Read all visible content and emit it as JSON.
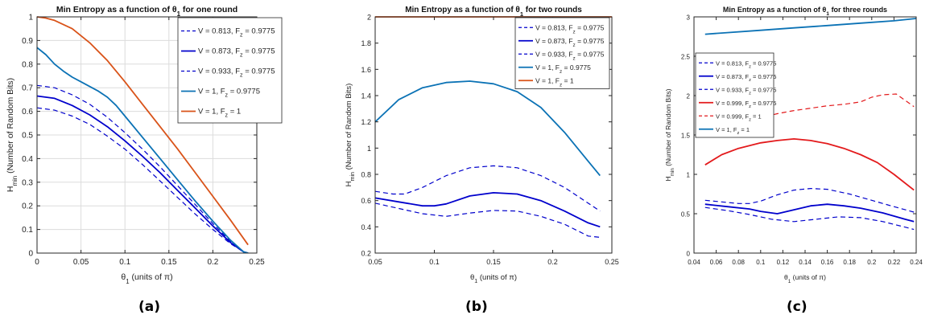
{
  "figure": {
    "panel_labels": [
      "(a)",
      "(b)",
      "(c)"
    ]
  },
  "colors": {
    "dark_blue": "#0000cc",
    "teal": "#0b72b5",
    "orange": "#d95319",
    "red": "#e31a1c"
  },
  "chart_data": [
    {
      "type": "line",
      "title": "Min Entropy as a function of θ1 for one round",
      "xlabel": "θ1 (units of π)",
      "ylabel": "Hmin (Number of Random Bits)",
      "xlim": [
        0,
        0.25
      ],
      "ylim": [
        0,
        1
      ],
      "xticks": [
        0,
        0.05,
        0.1,
        0.15,
        0.2,
        0.25
      ],
      "xtick_labels": [
        "0",
        "0.05",
        "0.1",
        "0.15",
        "0.2",
        "0.25"
      ],
      "yticks": [
        0,
        0.1,
        0.2,
        0.3,
        0.4,
        0.5,
        0.6,
        0.7,
        0.8,
        0.9,
        1
      ],
      "ytick_labels": [
        "0",
        "0.1",
        "0.2",
        "0.3",
        "0.4",
        "0.5",
        "0.6",
        "0.7",
        "0.8",
        "0.9",
        "1"
      ],
      "grid": true,
      "legend_position": "top-right",
      "series": [
        {
          "name": "V = 0.813, F_z = 0.9775",
          "style": "dashed",
          "color": "#0000cc",
          "x": [
            0,
            0.02,
            0.04,
            0.06,
            0.08,
            0.1,
            0.12,
            0.14,
            0.16,
            0.18,
            0.2,
            0.22,
            0.235,
            0.24
          ],
          "y": [
            0.615,
            0.605,
            0.58,
            0.545,
            0.495,
            0.44,
            0.375,
            0.305,
            0.235,
            0.165,
            0.1,
            0.04,
            0.005,
            0
          ]
        },
        {
          "name": "V = 0.873, F_z = 0.9775",
          "style": "solid",
          "color": "#0000cc",
          "x": [
            0,
            0.02,
            0.04,
            0.06,
            0.08,
            0.1,
            0.12,
            0.14,
            0.16,
            0.18,
            0.2,
            0.22,
            0.235,
            0.24
          ],
          "y": [
            0.665,
            0.655,
            0.625,
            0.585,
            0.535,
            0.475,
            0.41,
            0.34,
            0.265,
            0.19,
            0.115,
            0.045,
            0.005,
            0
          ]
        },
        {
          "name": "V = 0.933, F_z = 0.9775",
          "style": "dashed",
          "color": "#0000cc",
          "x": [
            0,
            0.02,
            0.04,
            0.06,
            0.08,
            0.1,
            0.12,
            0.14,
            0.16,
            0.18,
            0.2,
            0.22,
            0.235,
            0.24
          ],
          "y": [
            0.71,
            0.7,
            0.67,
            0.63,
            0.575,
            0.51,
            0.44,
            0.365,
            0.285,
            0.205,
            0.125,
            0.05,
            0.005,
            0
          ]
        },
        {
          "name": "V = 1, F_z = 0.9775",
          "style": "solid",
          "color": "#0b72b5",
          "x": [
            0,
            0.01,
            0.02,
            0.03,
            0.04,
            0.05,
            0.06,
            0.07,
            0.08,
            0.09,
            0.1,
            0.12,
            0.14,
            0.16,
            0.18,
            0.2,
            0.22,
            0.235,
            0.24
          ],
          "y": [
            0.87,
            0.84,
            0.8,
            0.77,
            0.745,
            0.725,
            0.705,
            0.685,
            0.66,
            0.625,
            0.58,
            0.49,
            0.4,
            0.31,
            0.22,
            0.135,
            0.055,
            0.005,
            0
          ]
        },
        {
          "name": "V = 1, F_z = 1",
          "style": "solid",
          "color": "#d95319",
          "x": [
            0,
            0.01,
            0.02,
            0.04,
            0.06,
            0.08,
            0.1,
            0.12,
            0.14,
            0.16,
            0.18,
            0.2,
            0.22,
            0.24
          ],
          "y": [
            1,
            0.995,
            0.985,
            0.95,
            0.89,
            0.815,
            0.725,
            0.63,
            0.535,
            0.44,
            0.34,
            0.24,
            0.14,
            0.035
          ]
        }
      ]
    },
    {
      "type": "line",
      "title": "Min Entropy as a function of θ1 for two rounds",
      "xlabel": "θ1 (units of π)",
      "ylabel": "Hmin (Number of Random Bits)",
      "xlim": [
        0.05,
        0.25
      ],
      "ylim": [
        0.2,
        2
      ],
      "xticks": [
        0.05,
        0.1,
        0.15,
        0.2,
        0.25
      ],
      "xtick_labels": [
        "0.05",
        "0.1",
        "0.15",
        "0.2",
        "0.25"
      ],
      "yticks": [
        0.2,
        0.4,
        0.6,
        0.8,
        1,
        1.2,
        1.4,
        1.6,
        1.8,
        2
      ],
      "ytick_labels": [
        "0.2",
        "0.4",
        "0.6",
        "0.8",
        "1",
        "1.2",
        "1.4",
        "1.6",
        "1.8",
        "2"
      ],
      "grid": false,
      "legend_position": "top-right",
      "series": [
        {
          "name": "V = 0.813, F_z = 0.9775",
          "style": "dashed",
          "color": "#0000cc",
          "x": [
            0.05,
            0.07,
            0.09,
            0.11,
            0.13,
            0.15,
            0.17,
            0.19,
            0.21,
            0.23,
            0.24
          ],
          "y": [
            0.58,
            0.54,
            0.5,
            0.48,
            0.505,
            0.525,
            0.52,
            0.48,
            0.42,
            0.33,
            0.32
          ]
        },
        {
          "name": "V = 0.873, F_z = 0.9775",
          "style": "solid",
          "color": "#0000cc",
          "x": [
            0.05,
            0.07,
            0.09,
            0.1,
            0.11,
            0.13,
            0.15,
            0.17,
            0.19,
            0.21,
            0.23,
            0.24
          ],
          "y": [
            0.62,
            0.59,
            0.56,
            0.56,
            0.575,
            0.635,
            0.66,
            0.65,
            0.6,
            0.52,
            0.43,
            0.4
          ]
        },
        {
          "name": "V = 0.933, F_z = 0.9775",
          "style": "dashed",
          "color": "#0000cc",
          "x": [
            0.05,
            0.065,
            0.075,
            0.09,
            0.11,
            0.13,
            0.15,
            0.17,
            0.19,
            0.21,
            0.23,
            0.24
          ],
          "y": [
            0.67,
            0.65,
            0.65,
            0.7,
            0.79,
            0.85,
            0.865,
            0.85,
            0.79,
            0.7,
            0.58,
            0.52
          ]
        },
        {
          "name": "V = 1, F_z = 0.9775",
          "style": "solid",
          "color": "#0b72b5",
          "x": [
            0.05,
            0.07,
            0.09,
            0.11,
            0.13,
            0.15,
            0.17,
            0.19,
            0.21,
            0.23,
            0.24
          ],
          "y": [
            1.2,
            1.37,
            1.46,
            1.5,
            1.51,
            1.49,
            1.43,
            1.31,
            1.12,
            0.9,
            0.79
          ]
        },
        {
          "name": "V = 1, F_z = 1",
          "style": "solid",
          "color": "#d95319",
          "x": [
            0.05,
            0.25
          ],
          "y": [
            2,
            2
          ]
        }
      ]
    },
    {
      "type": "line",
      "title": "Min Entropy as a function of θ1 for three rounds",
      "xlabel": "θ1 (units of π)",
      "ylabel": "Hmin (Number of Random Bits)",
      "xlim": [
        0.04,
        0.24
      ],
      "ylim": [
        0,
        3
      ],
      "xticks": [
        0.04,
        0.06,
        0.08,
        0.1,
        0.12,
        0.14,
        0.16,
        0.18,
        0.2,
        0.22,
        0.24
      ],
      "xtick_labels": [
        "0.04",
        "0.06",
        "0.08",
        "0.1",
        "0.12",
        "0.14",
        "0.16",
        "0.18",
        "0.2",
        "0.22",
        "0.24"
      ],
      "yticks": [
        0,
        0.5,
        1,
        1.5,
        2,
        2.5,
        3
      ],
      "ytick_labels": [
        "0",
        "0.5",
        "1",
        "1.5",
        "2",
        "2.5",
        "3"
      ],
      "grid": false,
      "legend_position": "top-left",
      "series": [
        {
          "name": "V = 0.813, F_z = 0.9775",
          "style": "dashed",
          "color": "#0000cc",
          "x": [
            0.05,
            0.07,
            0.09,
            0.11,
            0.13,
            0.15,
            0.17,
            0.19,
            0.21,
            0.23,
            0.238
          ],
          "y": [
            0.58,
            0.54,
            0.49,
            0.43,
            0.4,
            0.43,
            0.46,
            0.45,
            0.4,
            0.33,
            0.3
          ]
        },
        {
          "name": "V = 0.873, F_z = 0.9775",
          "style": "solid",
          "color": "#0000cc",
          "x": [
            0.05,
            0.07,
            0.09,
            0.1,
            0.115,
            0.13,
            0.145,
            0.16,
            0.175,
            0.19,
            0.21,
            0.23,
            0.238
          ],
          "y": [
            0.62,
            0.59,
            0.56,
            0.53,
            0.5,
            0.55,
            0.6,
            0.62,
            0.6,
            0.57,
            0.51,
            0.43,
            0.4
          ]
        },
        {
          "name": "V = 0.933, F_z = 0.9775",
          "style": "dashed",
          "color": "#0000cc",
          "x": [
            0.05,
            0.065,
            0.08,
            0.09,
            0.1,
            0.115,
            0.13,
            0.145,
            0.16,
            0.18,
            0.2,
            0.22,
            0.238
          ],
          "y": [
            0.67,
            0.65,
            0.63,
            0.63,
            0.66,
            0.74,
            0.8,
            0.82,
            0.81,
            0.75,
            0.67,
            0.59,
            0.52
          ]
        },
        {
          "name": "V = 0.999, F_z = 0.9775",
          "style": "solid",
          "color": "#e31a1c",
          "x": [
            0.05,
            0.065,
            0.08,
            0.1,
            0.115,
            0.13,
            0.145,
            0.16,
            0.175,
            0.19,
            0.205,
            0.22,
            0.238
          ],
          "y": [
            1.12,
            1.25,
            1.33,
            1.4,
            1.43,
            1.45,
            1.43,
            1.39,
            1.33,
            1.25,
            1.15,
            1.0,
            0.8
          ]
        },
        {
          "name": "V = 0.999, F_z = 1",
          "style": "dashed",
          "color": "#e31a1c",
          "x": [
            0.05,
            0.065,
            0.08,
            0.1,
            0.115,
            0.13,
            0.145,
            0.16,
            0.175,
            0.19,
            0.2,
            0.21,
            0.222,
            0.238
          ],
          "y": [
            1.48,
            1.58,
            1.66,
            1.72,
            1.77,
            1.81,
            1.84,
            1.87,
            1.89,
            1.92,
            1.98,
            2.01,
            2.02,
            1.86
          ]
        },
        {
          "name": "V = 1, F_z = 1",
          "style": "solid",
          "color": "#0b72b5",
          "x": [
            0.05,
            0.07,
            0.1,
            0.13,
            0.16,
            0.19,
            0.22,
            0.24
          ],
          "y": [
            2.78,
            2.8,
            2.83,
            2.86,
            2.89,
            2.92,
            2.95,
            2.98
          ]
        }
      ]
    }
  ]
}
